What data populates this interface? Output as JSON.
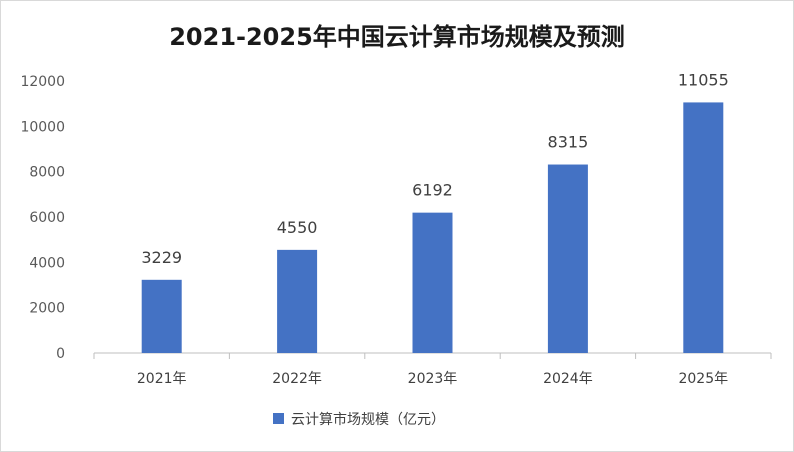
{
  "chart_data": {
    "type": "bar",
    "title": "2021-2025年中国云计算市场规模及预测",
    "categories": [
      "2021年",
      "2022年",
      "2023年",
      "2024年",
      "2025年"
    ],
    "series": [
      {
        "name": "云计算市场规模（亿元）",
        "values": [
          3229,
          4550,
          6192,
          8315,
          11055
        ],
        "color": "#4472C4"
      }
    ],
    "y_ticks": [
      0,
      2000,
      4000,
      6000,
      8000,
      10000,
      12000
    ],
    "ylim": [
      0,
      12000
    ],
    "xlabel": "",
    "ylabel": "",
    "grid": false,
    "data_labels": true,
    "legend_position": "bottom"
  }
}
